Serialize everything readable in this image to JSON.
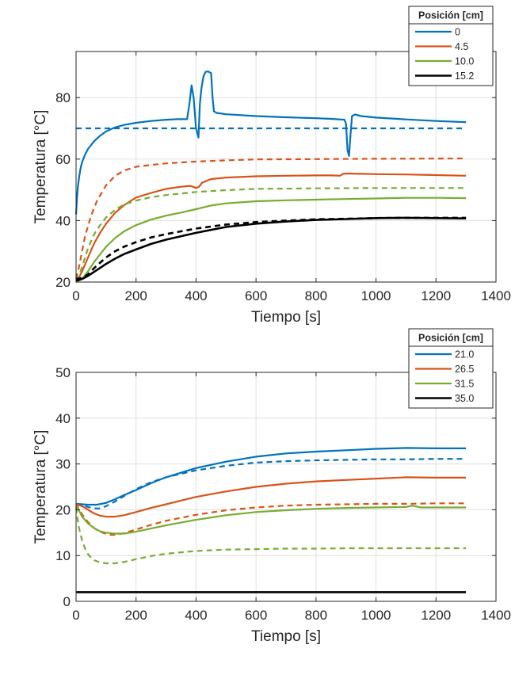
{
  "chart_data": [
    {
      "type": "line",
      "xlabel": "Tiempo [s]",
      "ylabel": "Temperatura [°C]",
      "xlim": [
        0,
        1400
      ],
      "ylim": [
        20,
        95
      ],
      "xticks": [
        0,
        200,
        400,
        600,
        800,
        1000,
        1200,
        1400
      ],
      "yticks": [
        20,
        40,
        60,
        80
      ],
      "grid": true,
      "legend": {
        "title": "Posición [cm]",
        "placement": "top-right outside"
      },
      "series": [
        {
          "name": "0",
          "color": "#0072BD",
          "style": "solid",
          "x": [
            0,
            3,
            6,
            10,
            15,
            20,
            30,
            40,
            60,
            80,
            100,
            130,
            160,
            200,
            250,
            300,
            340,
            370,
            378,
            385,
            392,
            400,
            408,
            413,
            418,
            425,
            432,
            440,
            450,
            455,
            460,
            470,
            500,
            600,
            700,
            800,
            850,
            895,
            900,
            905,
            910,
            915,
            920,
            930,
            950,
            1000,
            1100,
            1200,
            1300
          ],
          "y": [
            42,
            47,
            51,
            54,
            57,
            59,
            61.5,
            63.3,
            65.8,
            67.6,
            69,
            70.3,
            71.1,
            71.8,
            72.4,
            72.8,
            73,
            73,
            78,
            84,
            80,
            70,
            67,
            78,
            83,
            87,
            88.4,
            88.5,
            88,
            80,
            75.5,
            75,
            74.6,
            74,
            73.6,
            73.3,
            73.1,
            72.8,
            71.5,
            63,
            61,
            68,
            74,
            74.5,
            74,
            73.5,
            72.9,
            72.4,
            72
          ]
        },
        {
          "name": "",
          "color": "#0072BD",
          "style": "dashed",
          "x": [
            0,
            1300
          ],
          "y": [
            70,
            70
          ]
        },
        {
          "name": "4.5",
          "color": "#D95319",
          "style": "solid",
          "x": [
            0,
            10,
            20,
            40,
            60,
            80,
            100,
            130,
            160,
            200,
            250,
            300,
            350,
            380,
            390,
            400,
            410,
            420,
            450,
            500,
            600,
            700,
            800,
            850,
            880,
            890,
            900,
            950,
            1000,
            1100,
            1200,
            1300
          ],
          "y": [
            20.5,
            21.5,
            23.5,
            28,
            32.5,
            36,
            39,
            42.5,
            45,
            47.5,
            49,
            50.3,
            51,
            51.3,
            51,
            50.6,
            51,
            52.3,
            53.5,
            54,
            54.4,
            54.6,
            54.7,
            54.7,
            54.6,
            55.2,
            55.3,
            55.2,
            55.1,
            55,
            54.8,
            54.6
          ]
        },
        {
          "name": "",
          "color": "#D95319",
          "style": "dashed",
          "x": [
            0,
            10,
            20,
            30,
            50,
            70,
            100,
            130,
            160,
            200,
            250,
            300,
            400,
            500,
            600,
            800,
            1000,
            1300
          ],
          "y": [
            21,
            25,
            30,
            35,
            41.5,
            46.5,
            51.5,
            54.5,
            56.3,
            57.5,
            58.1,
            58.6,
            59.2,
            59.6,
            59.9,
            60,
            60.1,
            60.2
          ]
        },
        {
          "name": "10.0",
          "color": "#77AC30",
          "style": "solid",
          "x": [
            0,
            20,
            40,
            60,
            80,
            100,
            130,
            160,
            200,
            250,
            300,
            350,
            400,
            450,
            500,
            600,
            700,
            800,
            900,
            1000,
            1100,
            1200,
            1300
          ],
          "y": [
            20,
            21,
            23.5,
            26.5,
            29,
            31.5,
            34.3,
            36.5,
            38.5,
            40.3,
            41.6,
            42.6,
            43.7,
            44.9,
            45.6,
            46.3,
            46.6,
            46.8,
            47,
            47.2,
            47.4,
            47.4,
            47.3
          ]
        },
        {
          "name": "",
          "color": "#77AC30",
          "style": "dashed",
          "x": [
            0,
            10,
            20,
            40,
            60,
            80,
            100,
            130,
            160,
            200,
            250,
            300,
            400,
            500,
            600,
            800,
            1000,
            1300
          ],
          "y": [
            20.5,
            22,
            25,
            31,
            35.5,
            38.5,
            41,
            43.5,
            45.2,
            46.5,
            47.6,
            48.3,
            49.3,
            49.9,
            50.3,
            50.5,
            50.6,
            50.6
          ]
        },
        {
          "name": "15.2",
          "color": "#000000",
          "style": "solid",
          "x": [
            0,
            20,
            40,
            60,
            80,
            100,
            130,
            160,
            200,
            250,
            300,
            400,
            500,
            600,
            700,
            800,
            900,
            1000,
            1100,
            1200,
            1300
          ],
          "y": [
            20.5,
            21,
            22,
            23.3,
            24.6,
            25.9,
            27.6,
            29.1,
            30.6,
            32.4,
            33.8,
            36,
            37.9,
            39,
            39.7,
            40.2,
            40.5,
            40.8,
            40.9,
            40.8,
            40.7
          ]
        },
        {
          "name": "",
          "color": "#000000",
          "style": "dashed",
          "x": [
            0,
            20,
            40,
            60,
            80,
            100,
            130,
            160,
            200,
            250,
            300,
            400,
            500,
            600,
            700,
            800,
            900,
            1000,
            1100,
            1200,
            1300
          ],
          "y": [
            21,
            21.3,
            22.5,
            24.5,
            26.3,
            28,
            30,
            31.5,
            33,
            34.5,
            35.6,
            37.4,
            38.7,
            39.5,
            40,
            40.4,
            40.6,
            40.8,
            40.9,
            40.9,
            40.9
          ]
        }
      ]
    },
    {
      "type": "line",
      "xlabel": "Tiempo [s]",
      "ylabel": "Temperatura [°C]",
      "xlim": [
        0,
        1400
      ],
      "ylim": [
        0,
        50
      ],
      "xticks": [
        0,
        200,
        400,
        600,
        800,
        1000,
        1200,
        1400
      ],
      "yticks": [
        0,
        10,
        20,
        30,
        40,
        50
      ],
      "grid": true,
      "legend": {
        "title": "Posición [cm]",
        "placement": "top-right outside"
      },
      "series": [
        {
          "name": "21.0",
          "color": "#0072BD",
          "style": "solid",
          "x": [
            0,
            20,
            40,
            70,
            100,
            130,
            160,
            200,
            250,
            300,
            400,
            500,
            600,
            700,
            800,
            900,
            1000,
            1100,
            1200,
            1300
          ],
          "y": [
            21.3,
            21.2,
            21.1,
            21.1,
            21.5,
            22.3,
            23.2,
            24.3,
            25.8,
            27.1,
            29.1,
            30.5,
            31.6,
            32.3,
            32.7,
            33,
            33.3,
            33.5,
            33.4,
            33.4
          ]
        },
        {
          "name": "",
          "color": "#0072BD",
          "style": "dashed",
          "x": [
            0,
            20,
            40,
            60,
            80,
            100,
            130,
            160,
            200,
            250,
            300,
            400,
            500,
            600,
            700,
            800,
            900,
            1000,
            1100,
            1200,
            1300
          ],
          "y": [
            21.3,
            21,
            20.6,
            20.3,
            20.3,
            20.8,
            21.8,
            23,
            24.5,
            26,
            27.1,
            28.6,
            29.6,
            30.3,
            30.6,
            30.8,
            30.9,
            31,
            31,
            31.1,
            31.1
          ]
        },
        {
          "name": "26.5",
          "color": "#D95319",
          "style": "solid",
          "x": [
            0,
            20,
            40,
            60,
            80,
            100,
            130,
            160,
            200,
            250,
            300,
            400,
            500,
            600,
            700,
            800,
            900,
            1000,
            1100,
            1200,
            1300
          ],
          "y": [
            21.2,
            20.8,
            20,
            19.2,
            18.7,
            18.5,
            18.5,
            18.8,
            19.5,
            20.4,
            21.2,
            22.8,
            24,
            25,
            25.7,
            26.2,
            26.5,
            26.8,
            27.1,
            27,
            27
          ]
        },
        {
          "name": "",
          "color": "#D95319",
          "style": "dashed",
          "x": [
            0,
            10,
            20,
            40,
            60,
            80,
            100,
            120,
            140,
            160,
            200,
            250,
            300,
            400,
            500,
            600,
            700,
            800,
            900,
            1000,
            1100,
            1200,
            1300
          ],
          "y": [
            21.3,
            20,
            19,
            17.3,
            16,
            15.2,
            14.7,
            14.5,
            14.6,
            14.9,
            15.7,
            16.7,
            17.6,
            18.9,
            19.9,
            20.5,
            20.9,
            21.1,
            21.2,
            21.3,
            21.3,
            21.4,
            21.4
          ]
        },
        {
          "name": "31.5",
          "color": "#77AC30",
          "style": "solid",
          "x": [
            0,
            10,
            20,
            40,
            60,
            80,
            100,
            130,
            160,
            200,
            250,
            300,
            400,
            500,
            600,
            700,
            800,
            900,
            1000,
            1100,
            1120,
            1150,
            1200,
            1300
          ],
          "y": [
            20.8,
            19.8,
            18.5,
            17,
            16,
            15.3,
            15,
            14.8,
            14.8,
            15.2,
            15.9,
            16.6,
            17.8,
            18.8,
            19.5,
            19.9,
            20.2,
            20.4,
            20.5,
            20.6,
            20.9,
            20.5,
            20.5,
            20.5
          ]
        },
        {
          "name": "",
          "color": "#77AC30",
          "style": "dashed",
          "x": [
            0,
            5,
            10,
            20,
            30,
            40,
            50,
            60,
            80,
            100,
            130,
            160,
            200,
            250,
            300,
            400,
            500,
            600,
            700,
            800,
            900,
            1000,
            1100,
            1200,
            1300
          ],
          "y": [
            20.5,
            18,
            16,
            13.3,
            11.5,
            10.3,
            9.5,
            9,
            8.5,
            8.3,
            8.3,
            8.6,
            9.2,
            9.9,
            10.4,
            11,
            11.3,
            11.4,
            11.5,
            11.5,
            11.6,
            11.6,
            11.6,
            11.6,
            11.6
          ]
        },
        {
          "name": "35.0",
          "color": "#000000",
          "style": "solid",
          "x": [
            0,
            1300
          ],
          "y": [
            2,
            2
          ]
        }
      ]
    }
  ]
}
